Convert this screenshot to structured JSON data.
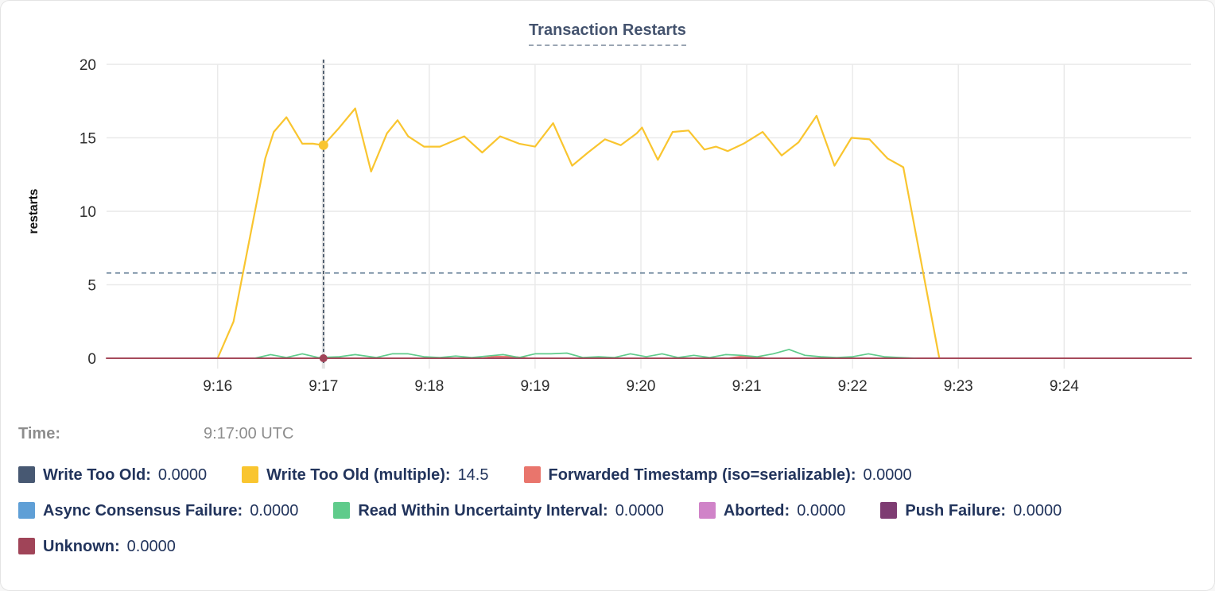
{
  "chart_data": {
    "type": "line",
    "title": "Transaction Restarts",
    "xlabel": "",
    "ylabel": "restarts",
    "ylim": [
      0,
      20
    ],
    "y_ticks": [
      0,
      5,
      10,
      15,
      20
    ],
    "x_domain_minutes": [
      14.95,
      25.2
    ],
    "x_ticks": [
      {
        "t": 16,
        "label": "9:16"
      },
      {
        "t": 17,
        "label": "9:17"
      },
      {
        "t": 18,
        "label": "9:18"
      },
      {
        "t": 19,
        "label": "9:19"
      },
      {
        "t": 20,
        "label": "9:20"
      },
      {
        "t": 21,
        "label": "9:21"
      },
      {
        "t": 22,
        "label": "9:22"
      },
      {
        "t": 23,
        "label": "9:23"
      },
      {
        "t": 24,
        "label": "9:24"
      }
    ],
    "grid": true,
    "legend_position": "bottom",
    "threshold_dashed_line_y": 5.8,
    "crosshair_t": 17,
    "hover_time": {
      "label": "Time:",
      "value": "9:17:00 UTC"
    },
    "hover_points": [
      {
        "series": "Write Too Old (multiple)",
        "t": 17,
        "v": 14.5,
        "r": 6
      },
      {
        "series": "Unknown",
        "t": 17,
        "v": 0,
        "r": 5
      }
    ],
    "style": {
      "grid_color": "#e9e9e9",
      "threshold_color": "#5e7892",
      "crosshair_color": "#34455a",
      "crosshair_band_color": "#e2e2e2",
      "title_color": "#44536e",
      "legend_text_color": "#22345c",
      "time_text_color": "#8d8d8d"
    },
    "draw_order": [
      0,
      3,
      5,
      6,
      2,
      4,
      1,
      7
    ],
    "series": [
      {
        "name": "Write Too Old",
        "legend_label": "Write Too Old:",
        "legend_value": "0.0000",
        "color": "#475872",
        "width": 1.5,
        "points": [
          [
            14.95,
            0
          ],
          [
            25.2,
            0
          ]
        ]
      },
      {
        "name": "Write Too Old (multiple)",
        "legend_label": "Write Too Old (multiple):",
        "legend_value": "14.5",
        "color": "#f9c52f",
        "width": 2.2,
        "points": [
          [
            16.0,
            0
          ],
          [
            16.15,
            2.5
          ],
          [
            16.45,
            13.6
          ],
          [
            16.53,
            15.4
          ],
          [
            16.65,
            16.4
          ],
          [
            16.8,
            14.6
          ],
          [
            16.9,
            14.6
          ],
          [
            17.0,
            14.5
          ],
          [
            17.15,
            15.7
          ],
          [
            17.3,
            17.0
          ],
          [
            17.45,
            12.7
          ],
          [
            17.6,
            15.3
          ],
          [
            17.7,
            16.2
          ],
          [
            17.8,
            15.1
          ],
          [
            17.95,
            14.4
          ],
          [
            18.1,
            14.4
          ],
          [
            18.33,
            15.1
          ],
          [
            18.5,
            14.0
          ],
          [
            18.67,
            15.1
          ],
          [
            18.85,
            14.6
          ],
          [
            19.0,
            14.4
          ],
          [
            19.17,
            16.0
          ],
          [
            19.35,
            13.1
          ],
          [
            19.5,
            14.0
          ],
          [
            19.66,
            14.9
          ],
          [
            19.81,
            14.5
          ],
          [
            19.96,
            15.3
          ],
          [
            20.01,
            15.7
          ],
          [
            20.16,
            13.5
          ],
          [
            20.3,
            15.4
          ],
          [
            20.45,
            15.5
          ],
          [
            20.6,
            14.2
          ],
          [
            20.71,
            14.4
          ],
          [
            20.82,
            14.1
          ],
          [
            20.97,
            14.6
          ],
          [
            21.15,
            15.4
          ],
          [
            21.33,
            13.8
          ],
          [
            21.49,
            14.7
          ],
          [
            21.66,
            16.5
          ],
          [
            21.83,
            13.1
          ],
          [
            21.99,
            15.0
          ],
          [
            22.16,
            14.9
          ],
          [
            22.33,
            13.6
          ],
          [
            22.48,
            13.0
          ],
          [
            22.82,
            0
          ]
        ]
      },
      {
        "name": "Forwarded Timestamp (iso=serializable)",
        "legend_label": "Forwarded Timestamp (iso=serializable):",
        "legend_value": "0.0000",
        "color": "#e9756c",
        "width": 1.8,
        "points": [
          [
            14.95,
            0
          ],
          [
            18.5,
            0
          ],
          [
            18.62,
            0.12
          ],
          [
            18.8,
            0.1
          ],
          [
            18.95,
            0
          ],
          [
            20.82,
            0
          ],
          [
            20.95,
            0.12
          ],
          [
            21.08,
            0.08
          ],
          [
            21.2,
            0
          ],
          [
            25.2,
            0
          ]
        ]
      },
      {
        "name": "Async Consensus Failure",
        "legend_label": "Async Consensus Failure:",
        "legend_value": "0.0000",
        "color": "#5f9fd6",
        "width": 1.5,
        "points": [
          [
            14.95,
            0
          ],
          [
            25.2,
            0
          ]
        ]
      },
      {
        "name": "Read Within Uncertainty Interval",
        "legend_label": "Read Within Uncertainty Interval:",
        "legend_value": "0.0000",
        "color": "#5fcb8b",
        "width": 1.7,
        "points": [
          [
            16.35,
            0
          ],
          [
            16.5,
            0.25
          ],
          [
            16.65,
            0.05
          ],
          [
            16.8,
            0.3
          ],
          [
            16.95,
            0.05
          ],
          [
            17.15,
            0.1
          ],
          [
            17.3,
            0.25
          ],
          [
            17.5,
            0.05
          ],
          [
            17.65,
            0.3
          ],
          [
            17.8,
            0.3
          ],
          [
            17.95,
            0.1
          ],
          [
            18.1,
            0.05
          ],
          [
            18.25,
            0.15
          ],
          [
            18.4,
            0.05
          ],
          [
            18.55,
            0.15
          ],
          [
            18.7,
            0.25
          ],
          [
            18.85,
            0.05
          ],
          [
            19.0,
            0.3
          ],
          [
            19.15,
            0.3
          ],
          [
            19.3,
            0.35
          ],
          [
            19.45,
            0.05
          ],
          [
            19.6,
            0.1
          ],
          [
            19.75,
            0.05
          ],
          [
            19.9,
            0.3
          ],
          [
            20.05,
            0.1
          ],
          [
            20.2,
            0.3
          ],
          [
            20.35,
            0.05
          ],
          [
            20.5,
            0.2
          ],
          [
            20.65,
            0.05
          ],
          [
            20.8,
            0.25
          ],
          [
            20.95,
            0.2
          ],
          [
            21.1,
            0.1
          ],
          [
            21.25,
            0.3
          ],
          [
            21.4,
            0.6
          ],
          [
            21.55,
            0.2
          ],
          [
            21.7,
            0.1
          ],
          [
            21.85,
            0.05
          ],
          [
            22.0,
            0.1
          ],
          [
            22.15,
            0.3
          ],
          [
            22.3,
            0.1
          ],
          [
            22.45,
            0.05
          ],
          [
            22.6,
            0
          ]
        ]
      },
      {
        "name": "Aborted",
        "legend_label": "Aborted:",
        "legend_value": "0.0000",
        "color": "#d083c8",
        "width": 1.5,
        "points": [
          [
            14.95,
            0
          ],
          [
            25.2,
            0
          ]
        ]
      },
      {
        "name": "Push Failure",
        "legend_label": "Push Failure:",
        "legend_value": "0.0000",
        "color": "#7e3c72",
        "width": 1.5,
        "points": [
          [
            14.95,
            0
          ],
          [
            25.2,
            0
          ]
        ]
      },
      {
        "name": "Unknown",
        "legend_label": "Unknown:",
        "legend_value": "0.0000",
        "color": "#a04458",
        "width": 1.7,
        "points": [
          [
            14.95,
            0
          ],
          [
            25.2,
            0
          ]
        ]
      }
    ]
  }
}
